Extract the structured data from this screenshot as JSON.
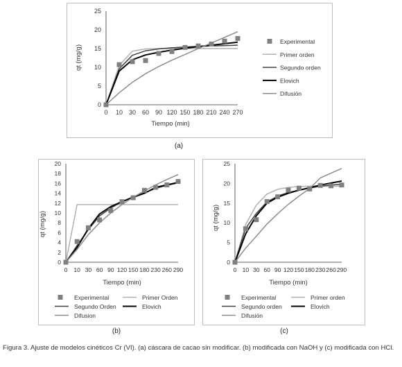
{
  "panel_labels": [
    "(a)",
    "(b)",
    "(c)"
  ],
  "caption": "Figura 3. Ajuste de modelos cinéticos Cr (VI). (a) cáscara de cacao sin modificar. (b) modificada con NaOH y (c) modificada con HCl.",
  "colors": {
    "experimental": "#808080",
    "primer_orden": "#b0b0b0",
    "segundo_orden": "#404040",
    "elovich": "#000000",
    "difusion": "#8c8c8c",
    "grid_axis": "#333333"
  },
  "chart_data": [
    {
      "type": "scatter",
      "panel": "(a)",
      "xlabel": "Tiempo (min)",
      "ylabel": "qt (mg/g)",
      "categories": [
        "0",
        "10",
        "30",
        "60",
        "90",
        "120",
        "150",
        "180",
        "210",
        "240",
        "270"
      ],
      "ylim": [
        0,
        25
      ],
      "yticks": [
        0,
        5,
        10,
        15,
        20,
        25
      ],
      "legend_position": "right",
      "series": [
        {
          "name": "Experimental",
          "kind": "markers",
          "values": [
            0,
            10.7,
            11.5,
            11.8,
            13.7,
            14.2,
            15.3,
            15.7,
            16.2,
            17.0,
            17.7
          ]
        },
        {
          "name": "Primer orden",
          "kind": "line",
          "values": [
            0,
            10.5,
            14.3,
            14.9,
            15.0,
            15.0,
            15.0,
            15.0,
            15.0,
            15.0,
            15.0
          ]
        },
        {
          "name": "Segundo orden",
          "kind": "line",
          "values": [
            0,
            9.6,
            13.2,
            14.4,
            14.9,
            15.2,
            15.4,
            15.6,
            15.7,
            15.8,
            15.9
          ]
        },
        {
          "name": "Elovich",
          "kind": "line",
          "values": [
            0,
            9.0,
            12.0,
            13.3,
            14.0,
            14.6,
            15.1,
            15.5,
            15.9,
            16.3,
            16.7
          ]
        },
        {
          "name": "Difusión",
          "kind": "line",
          "values": [
            0,
            3.2,
            6.0,
            8.3,
            10.2,
            11.9,
            13.4,
            15.0,
            16.5,
            18.0,
            19.5
          ]
        }
      ]
    },
    {
      "type": "scatter",
      "panel": "(b)",
      "xlabel": "Tiempo (min)",
      "ylabel": "qt (mg/g)",
      "categories": [
        "0",
        "10",
        "30",
        "60",
        "90",
        "120",
        "150",
        "180",
        "230",
        "260",
        "290"
      ],
      "ylim": [
        0,
        20
      ],
      "yticks": [
        0,
        2,
        4,
        6,
        8,
        10,
        12,
        14,
        16,
        18,
        20
      ],
      "legend_position": "bottom",
      "series": [
        {
          "name": "Experimental",
          "kind": "markers",
          "values": [
            0,
            4.2,
            7.0,
            8.6,
            10.5,
            12.3,
            13.1,
            14.6,
            15.2,
            15.7,
            16.4
          ]
        },
        {
          "name": "Primer Orden",
          "kind": "line",
          "values": [
            0,
            11.7,
            11.7,
            11.7,
            11.7,
            11.7,
            11.7,
            11.7,
            11.7,
            11.7,
            11.7
          ]
        },
        {
          "name": "Segundo Orden",
          "kind": "line",
          "values": [
            0,
            3.4,
            6.6,
            9.4,
            11.0,
            12.3,
            13.3,
            14.1,
            15.0,
            15.6,
            16.1
          ]
        },
        {
          "name": "Elovich",
          "kind": "line",
          "values": [
            0,
            3.0,
            6.8,
            9.8,
            11.3,
            12.3,
            13.2,
            14.0,
            15.2,
            15.7,
            16.2
          ]
        },
        {
          "name": "Difusion",
          "kind": "line",
          "values": [
            0,
            2.6,
            5.6,
            8.0,
            10.0,
            11.7,
            13.2,
            14.5,
            15.7,
            16.8,
            17.8
          ]
        }
      ]
    },
    {
      "type": "scatter",
      "panel": "(c)",
      "xlabel": "Tiempo (min)",
      "ylabel": "qt (mg/g)",
      "categories": [
        "0",
        "10",
        "30",
        "60",
        "90",
        "120",
        "150",
        "180",
        "230",
        "260",
        "290"
      ],
      "ylim": [
        0,
        25
      ],
      "yticks": [
        0,
        5,
        10,
        15,
        20,
        25
      ],
      "legend_position": "bottom",
      "series": [
        {
          "name": "Experimental",
          "kind": "markers",
          "values": [
            0,
            8.5,
            10.8,
            15.4,
            16.6,
            18.3,
            18.8,
            18.6,
            19.5,
            19.4,
            19.6
          ]
        },
        {
          "name": "Primer orden",
          "kind": "line",
          "values": [
            0,
            9.5,
            14.5,
            17.3,
            18.5,
            19.0,
            19.2,
            19.3,
            19.3,
            19.3,
            19.3
          ]
        },
        {
          "name": "Segundo orden",
          "kind": "line",
          "values": [
            0,
            8.6,
            12.4,
            15.3,
            16.8,
            17.7,
            18.3,
            18.8,
            19.3,
            19.6,
            19.8
          ]
        },
        {
          "name": "Elovich",
          "kind": "line",
          "values": [
            0,
            7.2,
            11.8,
            15.0,
            16.5,
            17.5,
            18.3,
            18.9,
            19.6,
            20.1,
            20.6
          ]
        },
        {
          "name": "Difusión",
          "kind": "line",
          "values": [
            0,
            3.6,
            6.6,
            9.7,
            12.3,
            14.7,
            16.8,
            18.7,
            21.4,
            22.6,
            23.8
          ]
        }
      ]
    }
  ]
}
